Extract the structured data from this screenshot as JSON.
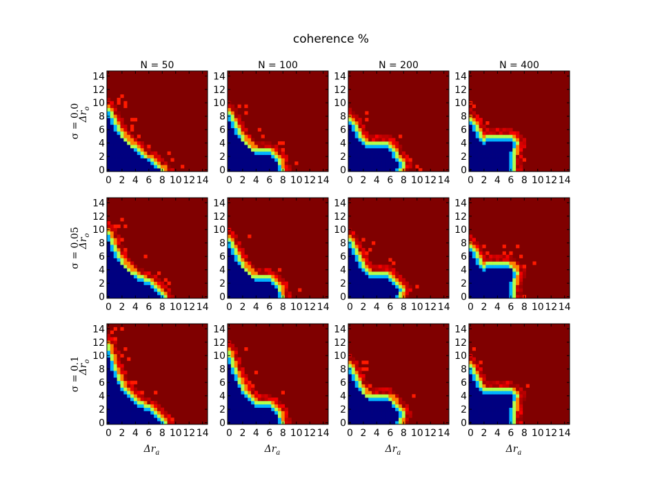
{
  "figure": {
    "suptitle": "coherence %",
    "colormap": "jet",
    "colors": {
      "dark_blue": "#00008f",
      "cyan": "#00dfff",
      "yellow": "#ffff00",
      "orange": "#ff7f00",
      "dark_red": "#8f0000"
    }
  },
  "chart_data": {
    "type": "heatmap",
    "title": "coherence %",
    "grid_rows": 3,
    "grid_cols": 4,
    "columns": [
      "N = 50",
      "N = 100",
      "N = 200",
      "N = 400"
    ],
    "rows": [
      "σ = 0.0",
      "σ = 0.05",
      "σ = 0.1"
    ],
    "xlabel": "Δr_a",
    "ylabel": "Δr_o",
    "xlim": [
      0,
      15
    ],
    "ylim": [
      0,
      15
    ],
    "xticks": [
      "0",
      "2",
      "4",
      "6",
      "8",
      "10",
      "12",
      "14"
    ],
    "yticks": [
      "0",
      "2",
      "4",
      "6",
      "8",
      "10",
      "12",
      "14"
    ],
    "value_range": [
      0,
      100
    ],
    "boundary_points": [
      {
        "N": 50,
        "sigma": 0.0,
        "points": [
          [
            0,
            9.5
          ],
          [
            1,
            7.5
          ],
          [
            2,
            5.5
          ],
          [
            4,
            3.5
          ],
          [
            6,
            2.0
          ],
          [
            8,
            0.5
          ],
          [
            8.5,
            0
          ]
        ]
      },
      {
        "N": 100,
        "sigma": 0.0,
        "points": [
          [
            0,
            9.0
          ],
          [
            1,
            7.0
          ],
          [
            2,
            5.0
          ],
          [
            4,
            3.0
          ],
          [
            6,
            3.0
          ],
          [
            7.5,
            2.0
          ],
          [
            8,
            0
          ]
        ]
      },
      {
        "N": 200,
        "sigma": 0.0,
        "points": [
          [
            0,
            8.0
          ],
          [
            1,
            6.5
          ],
          [
            2,
            4.5
          ],
          [
            3,
            4.0
          ],
          [
            6,
            4.0
          ],
          [
            7,
            2.5
          ],
          [
            8,
            1.0
          ],
          [
            7.5,
            0
          ]
        ]
      },
      {
        "N": 400,
        "sigma": 0.0,
        "points": [
          [
            0,
            8.0
          ],
          [
            1,
            6.5
          ],
          [
            2,
            4.5
          ],
          [
            3,
            5.0
          ],
          [
            6,
            5.0
          ],
          [
            7,
            4.5
          ],
          [
            6.5,
            2.5
          ],
          [
            6.5,
            0
          ]
        ]
      },
      {
        "N": 50,
        "sigma": 0.05,
        "points": [
          [
            0,
            10.0
          ],
          [
            1,
            7.5
          ],
          [
            2,
            5.5
          ],
          [
            4,
            3.5
          ],
          [
            6,
            2.5
          ],
          [
            8,
            1.0
          ],
          [
            8.5,
            0
          ]
        ]
      },
      {
        "N": 100,
        "sigma": 0.05,
        "points": [
          [
            0,
            9.0
          ],
          [
            1,
            7.0
          ],
          [
            2,
            5.0
          ],
          [
            4,
            3.0
          ],
          [
            6,
            3.0
          ],
          [
            7.5,
            2.0
          ],
          [
            8,
            0
          ]
        ]
      },
      {
        "N": 200,
        "sigma": 0.05,
        "points": [
          [
            0,
            9.0
          ],
          [
            1,
            7.0
          ],
          [
            2,
            5.0
          ],
          [
            3,
            3.5
          ],
          [
            6,
            3.5
          ],
          [
            7,
            2.0
          ],
          [
            8,
            1.5
          ],
          [
            7.5,
            0
          ]
        ]
      },
      {
        "N": 400,
        "sigma": 0.05,
        "points": [
          [
            0,
            8.0
          ],
          [
            1,
            6.5
          ],
          [
            2,
            4.5
          ],
          [
            3,
            5.0
          ],
          [
            6,
            5.0
          ],
          [
            7,
            4.0
          ],
          [
            6.5,
            2.0
          ],
          [
            6.5,
            0
          ]
        ]
      },
      {
        "N": 50,
        "sigma": 0.1,
        "points": [
          [
            0,
            12.0
          ],
          [
            1,
            8.5
          ],
          [
            2,
            6.0
          ],
          [
            4,
            3.5
          ],
          [
            6,
            2.5
          ],
          [
            8,
            1.0
          ],
          [
            8.5,
            0
          ]
        ]
      },
      {
        "N": 100,
        "sigma": 0.1,
        "points": [
          [
            0,
            11.0
          ],
          [
            1,
            8.0
          ],
          [
            2,
            5.5
          ],
          [
            4,
            3.0
          ],
          [
            6,
            3.0
          ],
          [
            7.5,
            2.0
          ],
          [
            8,
            0
          ]
        ]
      },
      {
        "N": 200,
        "sigma": 0.1,
        "points": [
          [
            0,
            9.0
          ],
          [
            1,
            7.0
          ],
          [
            2,
            5.0
          ],
          [
            3,
            4.0
          ],
          [
            6,
            4.0
          ],
          [
            7,
            3.0
          ],
          [
            8,
            1.5
          ],
          [
            7.5,
            0
          ]
        ]
      },
      {
        "N": 400,
        "sigma": 0.1,
        "points": [
          [
            0,
            9.0
          ],
          [
            1,
            7.0
          ],
          [
            2,
            5.0
          ],
          [
            3,
            5.0
          ],
          [
            6,
            5.0
          ],
          [
            7,
            4.5
          ],
          [
            6.5,
            2.0
          ],
          [
            6.5,
            0
          ]
        ]
      }
    ]
  }
}
